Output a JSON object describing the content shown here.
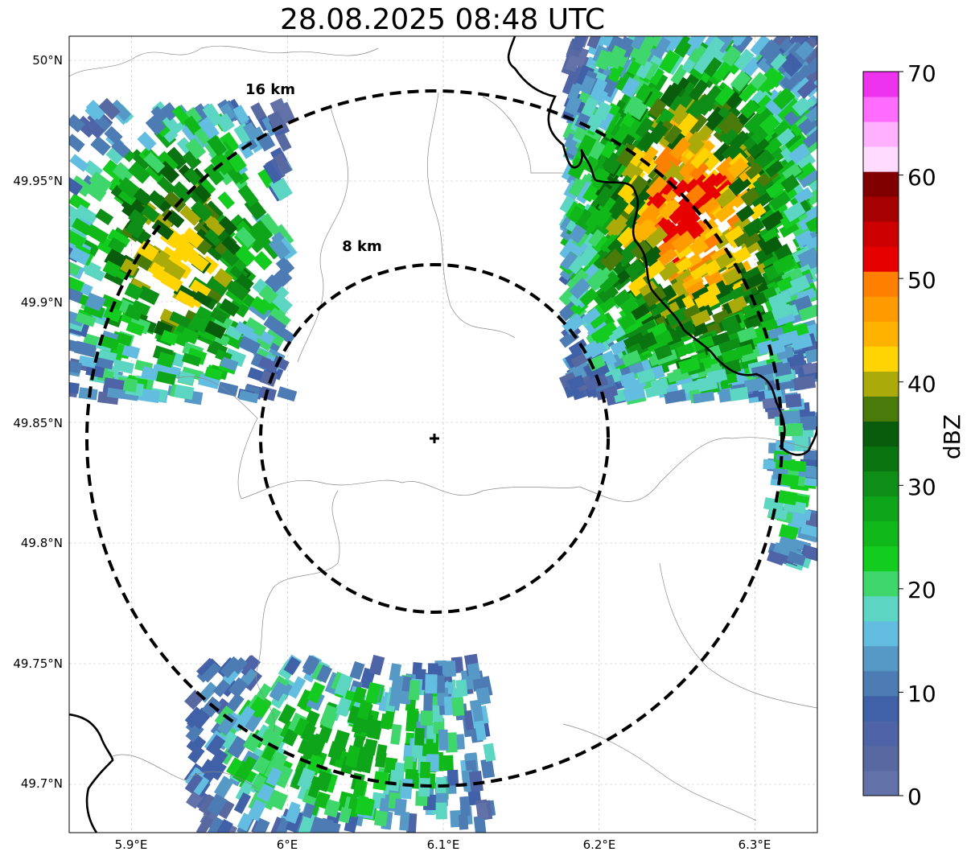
{
  "title": "28.08.2025 08:48 UTC",
  "lat_ticks": [
    "50°N",
    "49.95°N",
    "49.9°N",
    "49.85°N",
    "49.8°N",
    "49.75°N",
    "49.7°N"
  ],
  "lon_ticks": [
    "5.9°E",
    "6°E",
    "6.1°E",
    "6.2°E",
    "6.3°E"
  ],
  "rings": [
    {
      "label": "16 km",
      "radius_km": 16
    },
    {
      "label": "8 km",
      "radius_km": 8
    }
  ],
  "radar_site": {
    "lon": 6.095,
    "lat": 49.843
  },
  "extent": {
    "lon_min": 5.86,
    "lon_max": 6.34,
    "lat_min": 49.68,
    "lat_max": 50.01
  },
  "colorbar": {
    "label": "dBZ",
    "ticks": [
      "0",
      "10",
      "20",
      "30",
      "40",
      "50",
      "60",
      "70"
    ],
    "colors": [
      "#6272a9",
      "#5868a1",
      "#4e64a6",
      "#4060a8",
      "#4d7bb4",
      "#5699c6",
      "#62bde0",
      "#5cd6c2",
      "#3fd66b",
      "#14cc20",
      "#10b81a",
      "#0fa51a",
      "#0e8e17",
      "#0a7410",
      "#085c0b",
      "#4a7a0a",
      "#aaaa0a",
      "#ffd400",
      "#ffb300",
      "#ff9b00",
      "#ff7f00",
      "#e60000",
      "#cc0000",
      "#a60000",
      "#800000",
      "#ffdcff",
      "#ffb0ff",
      "#ff6cff",
      "#ee33ee"
    ]
  },
  "chart_data": {
    "type": "heatmap",
    "title": "28.08.2025 08:48 UTC",
    "variable": "dBZ",
    "vmin": 0,
    "vmax": 70,
    "xlabel": "",
    "ylabel": "",
    "xlim": [
      5.86,
      6.34
    ],
    "ylim": [
      49.68,
      50.01
    ],
    "echo_regions": [
      {
        "name": "northeast-cell",
        "lon_range": [
          6.18,
          6.34
        ],
        "lat_range": [
          49.86,
          50.01
        ],
        "max_dbz": 52
      },
      {
        "name": "northwest-band",
        "lon_range": [
          5.86,
          6.0
        ],
        "lat_range": [
          49.86,
          49.98
        ],
        "max_dbz": 42
      },
      {
        "name": "south-band",
        "lon_range": [
          5.94,
          6.13
        ],
        "lat_range": [
          49.68,
          49.75
        ],
        "max_dbz": 28
      },
      {
        "name": "east-edge",
        "lon_range": [
          6.31,
          6.34
        ],
        "lat_range": [
          49.79,
          49.86
        ],
        "max_dbz": 22
      }
    ]
  }
}
